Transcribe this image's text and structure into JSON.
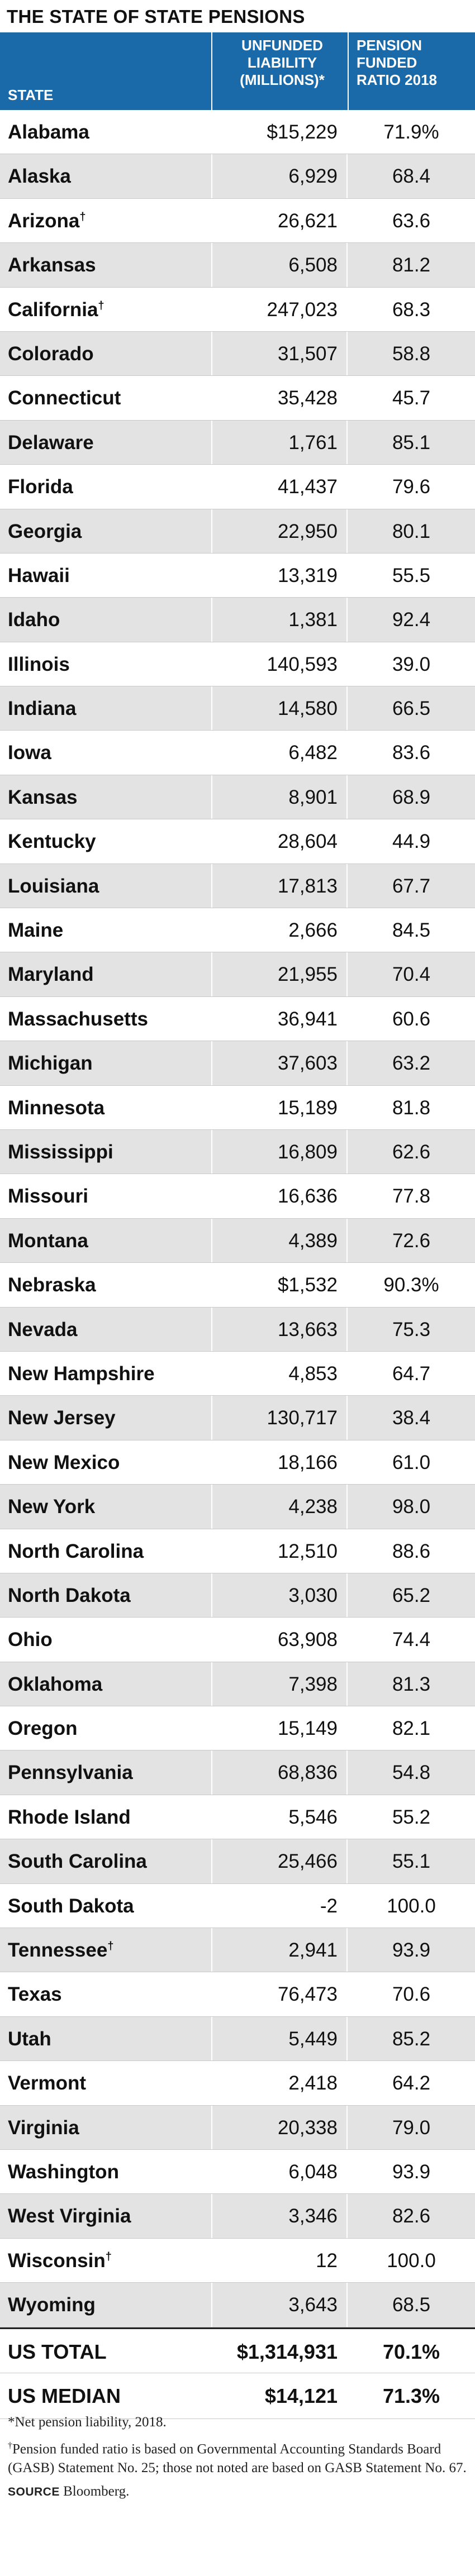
{
  "title": "THE STATE OF STATE PENSIONS",
  "chart_data": {
    "type": "table",
    "title": "THE STATE OF STATE PENSIONS",
    "columns": [
      "STATE",
      "UNFUNDED LIABILITY (MILLIONS)*",
      "PENSION FUNDED RATIO 2018"
    ],
    "header": {
      "state": "STATE",
      "unfunded": [
        "UNFUNDED",
        "LIABILITY",
        "(MILLIONS)*"
      ],
      "ratio": [
        "PENSION",
        "FUNDED",
        "RATIO 2018"
      ]
    },
    "rows": [
      {
        "state": "Alabama",
        "mark": "",
        "unfunded": "$15,229",
        "ratio": "71.9%"
      },
      {
        "state": "Alaska",
        "mark": "",
        "unfunded": "6,929",
        "ratio": "68.4"
      },
      {
        "state": "Arizona",
        "mark": "†",
        "unfunded": "26,621",
        "ratio": "63.6"
      },
      {
        "state": "Arkansas",
        "mark": "",
        "unfunded": "6,508",
        "ratio": "81.2"
      },
      {
        "state": "California",
        "mark": "†",
        "unfunded": "247,023",
        "ratio": "68.3"
      },
      {
        "state": "Colorado",
        "mark": "",
        "unfunded": "31,507",
        "ratio": "58.8"
      },
      {
        "state": "Connecticut",
        "mark": "",
        "unfunded": "35,428",
        "ratio": "45.7"
      },
      {
        "state": "Delaware",
        "mark": "",
        "unfunded": "1,761",
        "ratio": "85.1"
      },
      {
        "state": "Florida",
        "mark": "",
        "unfunded": "41,437",
        "ratio": "79.6"
      },
      {
        "state": "Georgia",
        "mark": "",
        "unfunded": "22,950",
        "ratio": "80.1"
      },
      {
        "state": "Hawaii",
        "mark": "",
        "unfunded": "13,319",
        "ratio": "55.5"
      },
      {
        "state": "Idaho",
        "mark": "",
        "unfunded": "1,381",
        "ratio": "92.4"
      },
      {
        "state": "Illinois",
        "mark": "",
        "unfunded": "140,593",
        "ratio": "39.0"
      },
      {
        "state": "Indiana",
        "mark": "",
        "unfunded": "14,580",
        "ratio": "66.5"
      },
      {
        "state": "Iowa",
        "mark": "",
        "unfunded": "6,482",
        "ratio": "83.6"
      },
      {
        "state": "Kansas",
        "mark": "",
        "unfunded": "8,901",
        "ratio": "68.9"
      },
      {
        "state": "Kentucky",
        "mark": "",
        "unfunded": "28,604",
        "ratio": "44.9"
      },
      {
        "state": "Louisiana",
        "mark": "",
        "unfunded": "17,813",
        "ratio": "67.7"
      },
      {
        "state": "Maine",
        "mark": "",
        "unfunded": "2,666",
        "ratio": "84.5"
      },
      {
        "state": "Maryland",
        "mark": "",
        "unfunded": "21,955",
        "ratio": "70.4"
      },
      {
        "state": "Massachusetts",
        "mark": "",
        "unfunded": "36,941",
        "ratio": "60.6"
      },
      {
        "state": "Michigan",
        "mark": "",
        "unfunded": "37,603",
        "ratio": "63.2"
      },
      {
        "state": "Minnesota",
        "mark": "",
        "unfunded": "15,189",
        "ratio": "81.8"
      },
      {
        "state": "Mississippi",
        "mark": "",
        "unfunded": "16,809",
        "ratio": "62.6"
      },
      {
        "state": "Missouri",
        "mark": "",
        "unfunded": "16,636",
        "ratio": "77.8"
      },
      {
        "state": "Montana",
        "mark": "",
        "unfunded": "4,389",
        "ratio": "72.6"
      },
      {
        "state": "Nebraska",
        "mark": "",
        "unfunded": "$1,532",
        "ratio": "90.3%"
      },
      {
        "state": "Nevada",
        "mark": "",
        "unfunded": "13,663",
        "ratio": "75.3"
      },
      {
        "state": "New Hampshire",
        "mark": "",
        "unfunded": "4,853",
        "ratio": "64.7"
      },
      {
        "state": "New Jersey",
        "mark": "",
        "unfunded": "130,717",
        "ratio": "38.4"
      },
      {
        "state": "New Mexico",
        "mark": "",
        "unfunded": "18,166",
        "ratio": "61.0"
      },
      {
        "state": "New York",
        "mark": "",
        "unfunded": "4,238",
        "ratio": "98.0"
      },
      {
        "state": "North Carolina",
        "mark": "",
        "unfunded": "12,510",
        "ratio": "88.6"
      },
      {
        "state": "North Dakota",
        "mark": "",
        "unfunded": "3,030",
        "ratio": "65.2"
      },
      {
        "state": "Ohio",
        "mark": "",
        "unfunded": "63,908",
        "ratio": "74.4"
      },
      {
        "state": "Oklahoma",
        "mark": "",
        "unfunded": "7,398",
        "ratio": "81.3"
      },
      {
        "state": "Oregon",
        "mark": "",
        "unfunded": "15,149",
        "ratio": "82.1"
      },
      {
        "state": "Pennsylvania",
        "mark": "",
        "unfunded": "68,836",
        "ratio": "54.8"
      },
      {
        "state": "Rhode Island",
        "mark": "",
        "unfunded": "5,546",
        "ratio": "55.2"
      },
      {
        "state": "South Carolina",
        "mark": "",
        "unfunded": "25,466",
        "ratio": "55.1"
      },
      {
        "state": "South Dakota",
        "mark": "",
        "unfunded": "-2",
        "ratio": "100.0"
      },
      {
        "state": "Tennessee",
        "mark": "†",
        "unfunded": "2,941",
        "ratio": "93.9"
      },
      {
        "state": "Texas",
        "mark": "",
        "unfunded": "76,473",
        "ratio": "70.6"
      },
      {
        "state": "Utah",
        "mark": "",
        "unfunded": "5,449",
        "ratio": "85.2"
      },
      {
        "state": "Vermont",
        "mark": "",
        "unfunded": "2,418",
        "ratio": "64.2"
      },
      {
        "state": "Virginia",
        "mark": "",
        "unfunded": "20,338",
        "ratio": "79.0"
      },
      {
        "state": "Washington",
        "mark": "",
        "unfunded": "6,048",
        "ratio": "93.9"
      },
      {
        "state": "West Virginia",
        "mark": "",
        "unfunded": "3,346",
        "ratio": "82.6"
      },
      {
        "state": "Wisconsin",
        "mark": "†",
        "unfunded": "12",
        "ratio": "100.0"
      },
      {
        "state": "Wyoming",
        "mark": "",
        "unfunded": "3,643",
        "ratio": "68.5"
      }
    ],
    "totals": [
      {
        "state": "US TOTAL",
        "unfunded": "$1,314,931",
        "ratio": "70.1%"
      },
      {
        "state": "US MEDIAN",
        "unfunded": "$14,121",
        "ratio": "71.3%"
      }
    ]
  },
  "notes": {
    "asterisk": "*Net pension liability, 2018.",
    "dagger_mark": "†",
    "dagger": "Pension funded ratio is based on Governmental Accounting Standards Board (GASB) Statement No. 25; those not noted are based on GASB Statement No. 67.",
    "source_label": "SOURCE",
    "source": "Bloomberg."
  },
  "colors": {
    "header_bg": "#1a6aaa",
    "row_shade": "#e3e3e3"
  }
}
